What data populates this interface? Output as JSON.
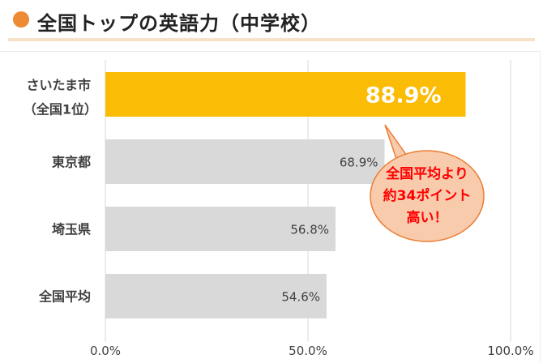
{
  "header": {
    "title": "全国トップの英語力（中学校）",
    "accent_color": "#ee8a33",
    "rule_color": "#f6e2c6"
  },
  "chart_data": {
    "type": "bar",
    "orientation": "horizontal",
    "categories": [
      [
        "さいたま市",
        "（全国1位）"
      ],
      [
        "東京都"
      ],
      [
        "埼玉県"
      ],
      [
        "全国平均"
      ]
    ],
    "values": [
      88.9,
      68.9,
      56.8,
      54.6
    ],
    "value_labels": [
      "88.9%",
      "68.9%",
      "56.8%",
      "54.6%"
    ],
    "xlim": [
      0,
      100
    ],
    "xticks": [
      0,
      50,
      100
    ],
    "xtick_labels": [
      "0.0%",
      "50.0%",
      "100.0%"
    ],
    "grid": true,
    "highlight_index": 0,
    "colors": {
      "highlight": "#fbbc05",
      "default": "#d9d9d9",
      "highlight_label": "#ffffff",
      "default_label": "#404040",
      "grid": "#d9d9d9"
    },
    "annotation": {
      "lines": [
        "全国平均より",
        "約34ポイント",
        "高い！"
      ],
      "fill": "#f8cbad",
      "stroke": "#ed7d31",
      "text_color": "#ff0000"
    }
  }
}
